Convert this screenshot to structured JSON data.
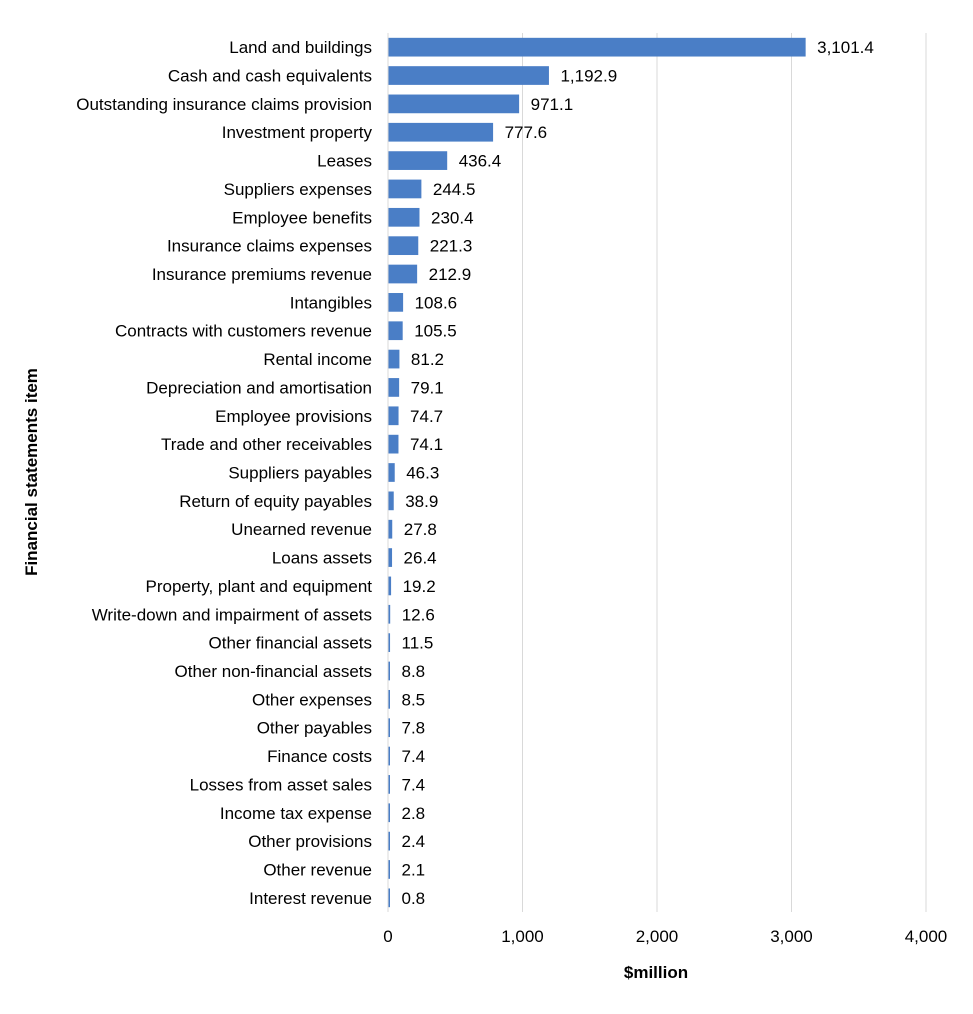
{
  "chart_data": {
    "type": "bar",
    "orientation": "horizontal",
    "xlabel": "$million",
    "ylabel": "Financial statements item",
    "xlim": [
      0,
      4000
    ],
    "xticks": [
      0,
      1000,
      2000,
      3000,
      4000
    ],
    "xtick_labels": [
      "0",
      "1,000",
      "2,000",
      "3,000",
      "4,000"
    ],
    "grid": "vertical",
    "bar_color": "#4a7ec6",
    "categories": [
      "Land and buildings",
      "Cash and cash equivalents",
      "Outstanding insurance claims provision",
      "Investment property",
      "Leases",
      "Suppliers expenses",
      "Employee benefits",
      "Insurance claims expenses",
      "Insurance premiums revenue",
      "Intangibles",
      "Contracts with customers revenue",
      "Rental income",
      "Depreciation and amortisation",
      "Employee provisions",
      "Trade and other receivables",
      "Suppliers payables",
      "Return of equity payables",
      "Unearned revenue",
      "Loans assets",
      "Property, plant and equipment",
      "Write-down and impairment of assets",
      "Other financial assets",
      "Other non-financial assets",
      "Other expenses",
      "Other payables",
      "Finance costs",
      "Losses from asset sales",
      "Income tax expense",
      "Other provisions",
      "Other revenue",
      "Interest revenue"
    ],
    "values": [
      3101.4,
      1192.9,
      971.1,
      777.6,
      436.4,
      244.5,
      230.4,
      221.3,
      212.9,
      108.6,
      105.5,
      81.2,
      79.1,
      74.7,
      74.1,
      46.3,
      38.9,
      27.8,
      26.4,
      19.2,
      12.6,
      11.5,
      8.8,
      8.5,
      7.8,
      7.4,
      7.4,
      2.8,
      2.4,
      2.1,
      0.8
    ],
    "value_labels": [
      "3,101.4",
      "1,192.9",
      "971.1",
      "777.6",
      "436.4",
      "244.5",
      "230.4",
      "221.3",
      "212.9",
      "108.6",
      "105.5",
      "81.2",
      "79.1",
      "74.7",
      "74.1",
      "46.3",
      "38.9",
      "27.8",
      "26.4",
      "19.2",
      "12.6",
      "11.5",
      "8.8",
      "8.5",
      "7.8",
      "7.4",
      "7.4",
      "2.8",
      "2.4",
      "2.1",
      "0.8"
    ]
  }
}
